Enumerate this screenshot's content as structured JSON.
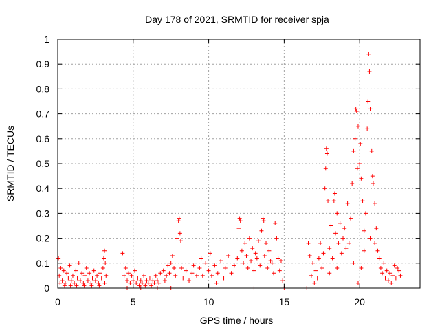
{
  "chart_data": {
    "type": "scatter",
    "title": "Day 178 of 2021, SRMTID for receiver spja",
    "xlabel": "GPS time / hours",
    "ylabel": "SRMTID / TECUs",
    "xlim": [
      0,
      24
    ],
    "ylim": [
      0,
      1
    ],
    "xticks": [
      0,
      5,
      10,
      15,
      20
    ],
    "xtick_labels": [
      "0",
      "5",
      "10",
      "15",
      "20"
    ],
    "yticks": [
      0,
      0.1,
      0.2,
      0.3,
      0.4,
      0.5,
      0.6,
      0.7,
      0.8,
      0.9,
      1
    ],
    "ytick_labels": [
      "0",
      "0.1",
      "0.2",
      "0.3",
      "0.4",
      "0.5",
      "0.6",
      "0.7",
      "0.8",
      "0.9",
      "1"
    ],
    "grid": true,
    "marker": "+",
    "color": "#ff0000",
    "series": [
      {
        "name": "SRMTID",
        "points": [
          [
            0.05,
            0.12
          ],
          [
            0.1,
            0.05
          ],
          [
            0.2,
            0.08
          ],
          [
            0.3,
            0.03
          ],
          [
            0.4,
            0.07
          ],
          [
            0.5,
            0.02
          ],
          [
            0.6,
            0.06
          ],
          [
            0.7,
            0.04
          ],
          [
            0.8,
            0.09
          ],
          [
            0.9,
            0.03
          ],
          [
            1.0,
            0.05
          ],
          [
            1.1,
            0.02
          ],
          [
            1.2,
            0.07
          ],
          [
            1.3,
            0.04
          ],
          [
            1.4,
            0.1
          ],
          [
            1.5,
            0.03
          ],
          [
            1.6,
            0.06
          ],
          [
            1.7,
            0.02
          ],
          [
            1.8,
            0.05
          ],
          [
            1.9,
            0.08
          ],
          [
            2.0,
            0.03
          ],
          [
            2.1,
            0.06
          ],
          [
            2.2,
            0.02
          ],
          [
            2.3,
            0.04
          ],
          [
            2.4,
            0.07
          ],
          [
            2.5,
            0.03
          ],
          [
            2.6,
            0.05
          ],
          [
            2.7,
            0.02
          ],
          [
            2.8,
            0.06
          ],
          [
            2.9,
            0.04
          ],
          [
            3.0,
            0.08
          ],
          [
            3.05,
            0.12
          ],
          [
            3.1,
            0.15
          ],
          [
            3.15,
            0.1
          ],
          [
            3.2,
            0.05
          ],
          [
            0.15,
            0.02
          ],
          [
            0.45,
            0.01
          ],
          [
            0.85,
            0.01
          ],
          [
            1.25,
            0.01
          ],
          [
            1.75,
            0.01
          ],
          [
            2.25,
            0.01
          ],
          [
            2.75,
            0.01
          ],
          [
            3.12,
            0.02
          ],
          [
            4.3,
            0.14
          ],
          [
            4.4,
            0.05
          ],
          [
            4.5,
            0.08
          ],
          [
            4.6,
            0.03
          ],
          [
            4.7,
            0.06
          ],
          [
            4.8,
            0.02
          ],
          [
            4.9,
            0.05
          ],
          [
            5.0,
            0.03
          ],
          [
            5.1,
            0.07
          ],
          [
            5.2,
            0.02
          ],
          [
            5.3,
            0.04
          ],
          [
            5.4,
            0.01
          ],
          [
            5.5,
            0.03
          ],
          [
            5.6,
            0.02
          ],
          [
            5.7,
            0.05
          ],
          [
            5.8,
            0.01
          ],
          [
            5.9,
            0.03
          ],
          [
            6.0,
            0.02
          ],
          [
            6.1,
            0.04
          ],
          [
            6.2,
            0.01
          ],
          [
            6.3,
            0.03
          ],
          [
            6.4,
            0.02
          ],
          [
            6.5,
            0.05
          ],
          [
            6.6,
            0.03
          ],
          [
            6.7,
            0.02
          ],
          [
            6.8,
            0.06
          ],
          [
            6.9,
            0.04
          ],
          [
            7.0,
            0.07
          ],
          [
            7.1,
            0.03
          ],
          [
            7.2,
            0.05
          ],
          [
            7.3,
            0.09
          ],
          [
            7.4,
            0.06
          ],
          [
            7.5,
            0.1
          ],
          [
            7.6,
            0.13
          ],
          [
            7.7,
            0.08
          ],
          [
            7.8,
            0.05
          ],
          [
            7.9,
            0.2
          ],
          [
            8.0,
            0.27
          ],
          [
            8.05,
            0.28
          ],
          [
            8.1,
            0.22
          ],
          [
            8.15,
            0.19
          ],
          [
            8.2,
            0.08
          ],
          [
            8.3,
            0.04
          ],
          [
            8.5,
            0.07
          ],
          [
            8.7,
            0.03
          ],
          [
            8.9,
            0.06
          ],
          [
            9.0,
            0.09
          ],
          [
            9.2,
            0.05
          ],
          [
            9.4,
            0.08
          ],
          [
            9.5,
            0.12
          ],
          [
            9.6,
            0.05
          ],
          [
            9.8,
            0.1
          ],
          [
            10.0,
            0.07
          ],
          [
            10.1,
            0.14
          ],
          [
            10.2,
            0.05
          ],
          [
            10.4,
            0.09
          ],
          [
            10.6,
            0.06
          ],
          [
            10.8,
            0.11
          ],
          [
            11.0,
            0.04
          ],
          [
            11.1,
            0.08
          ],
          [
            11.3,
            0.13
          ],
          [
            11.5,
            0.06
          ],
          [
            11.7,
            0.09
          ],
          [
            11.9,
            0.12
          ],
          [
            12.0,
            0.24
          ],
          [
            12.05,
            0.28
          ],
          [
            12.1,
            0.27
          ],
          [
            12.2,
            0.15
          ],
          [
            12.3,
            0.1
          ],
          [
            12.4,
            0.18
          ],
          [
            12.5,
            0.13
          ],
          [
            12.6,
            0.08
          ],
          [
            12.7,
            0.2
          ],
          [
            12.8,
            0.11
          ],
          [
            12.9,
            0.16
          ],
          [
            13.0,
            0.07
          ],
          [
            13.1,
            0.14
          ],
          [
            13.2,
            0.12
          ],
          [
            13.3,
            0.19
          ],
          [
            13.4,
            0.09
          ],
          [
            13.5,
            0.23
          ],
          [
            13.6,
            0.28
          ],
          [
            13.65,
            0.27
          ],
          [
            13.7,
            0.13
          ],
          [
            13.8,
            0.18
          ],
          [
            13.9,
            0.08
          ],
          [
            14.0,
            0.15
          ],
          [
            14.1,
            0.11
          ],
          [
            14.2,
            0.1
          ],
          [
            14.3,
            0.06
          ],
          [
            14.4,
            0.26
          ],
          [
            14.5,
            0.2
          ],
          [
            14.6,
            0.12
          ],
          [
            14.7,
            0.07
          ],
          [
            14.8,
            0.11
          ],
          [
            14.9,
            0.03
          ],
          [
            15.0,
            0.0
          ],
          [
            4.6,
            0.0
          ],
          [
            5.5,
            0.0
          ],
          [
            6.6,
            0.0
          ],
          [
            7.5,
            0.0
          ],
          [
            10.5,
            0.02
          ],
          [
            12.0,
            0.0
          ],
          [
            13.0,
            0.0
          ],
          [
            16.5,
            0.0
          ],
          [
            16.6,
            0.18
          ],
          [
            16.7,
            0.13
          ],
          [
            16.8,
            0.05
          ],
          [
            16.9,
            0.1
          ],
          [
            17.0,
            0.02
          ],
          [
            17.1,
            0.07
          ],
          [
            17.2,
            0.04
          ],
          [
            17.3,
            0.12
          ],
          [
            17.4,
            0.18
          ],
          [
            17.5,
            0.08
          ],
          [
            17.6,
            0.14
          ],
          [
            17.7,
            0.4
          ],
          [
            17.75,
            0.48
          ],
          [
            17.8,
            0.56
          ],
          [
            17.85,
            0.54
          ],
          [
            17.9,
            0.35
          ],
          [
            18.0,
            0.16
          ],
          [
            18.1,
            0.25
          ],
          [
            18.2,
            0.12
          ],
          [
            18.3,
            0.35
          ],
          [
            18.35,
            0.38
          ],
          [
            18.4,
            0.22
          ],
          [
            18.5,
            0.3
          ],
          [
            18.6,
            0.18
          ],
          [
            18.7,
            0.26
          ],
          [
            18.8,
            0.14
          ],
          [
            18.9,
            0.2
          ],
          [
            19.0,
            0.24
          ],
          [
            19.1,
            0.16
          ],
          [
            19.2,
            0.34
          ],
          [
            19.3,
            0.18
          ],
          [
            19.4,
            0.28
          ],
          [
            19.5,
            0.42
          ],
          [
            19.6,
            0.55
          ],
          [
            19.7,
            0.6
          ],
          [
            19.75,
            0.72
          ],
          [
            19.8,
            0.71
          ],
          [
            19.85,
            0.48
          ],
          [
            19.9,
            0.65
          ],
          [
            20.0,
            0.5
          ],
          [
            20.05,
            0.58
          ],
          [
            20.1,
            0.44
          ],
          [
            20.2,
            0.35
          ],
          [
            20.3,
            0.23
          ],
          [
            20.4,
            0.3
          ],
          [
            20.5,
            0.64
          ],
          [
            20.55,
            0.75
          ],
          [
            20.6,
            0.94
          ],
          [
            20.65,
            0.87
          ],
          [
            20.7,
            0.72
          ],
          [
            20.8,
            0.55
          ],
          [
            20.85,
            0.45
          ],
          [
            20.9,
            0.42
          ],
          [
            21.0,
            0.34
          ],
          [
            21.1,
            0.24
          ],
          [
            21.2,
            0.15
          ],
          [
            21.3,
            0.12
          ],
          [
            21.4,
            0.08
          ],
          [
            21.5,
            0.06
          ],
          [
            21.6,
            0.1
          ],
          [
            21.7,
            0.04
          ],
          [
            21.8,
            0.07
          ],
          [
            21.9,
            0.03
          ],
          [
            22.0,
            0.06
          ],
          [
            22.1,
            0.02
          ],
          [
            22.2,
            0.05
          ],
          [
            22.3,
            0.09
          ],
          [
            22.4,
            0.04
          ],
          [
            22.5,
            0.08
          ],
          [
            22.6,
            0.07
          ],
          [
            22.7,
            0.05
          ],
          [
            19.6,
            0.1
          ],
          [
            19.9,
            0.02
          ],
          [
            20.1,
            0.08
          ],
          [
            20.3,
            0.15
          ],
          [
            20.7,
            0.2
          ],
          [
            21.0,
            0.18
          ],
          [
            18.5,
            0.08
          ],
          [
            18.0,
            0.06
          ]
        ]
      }
    ]
  }
}
